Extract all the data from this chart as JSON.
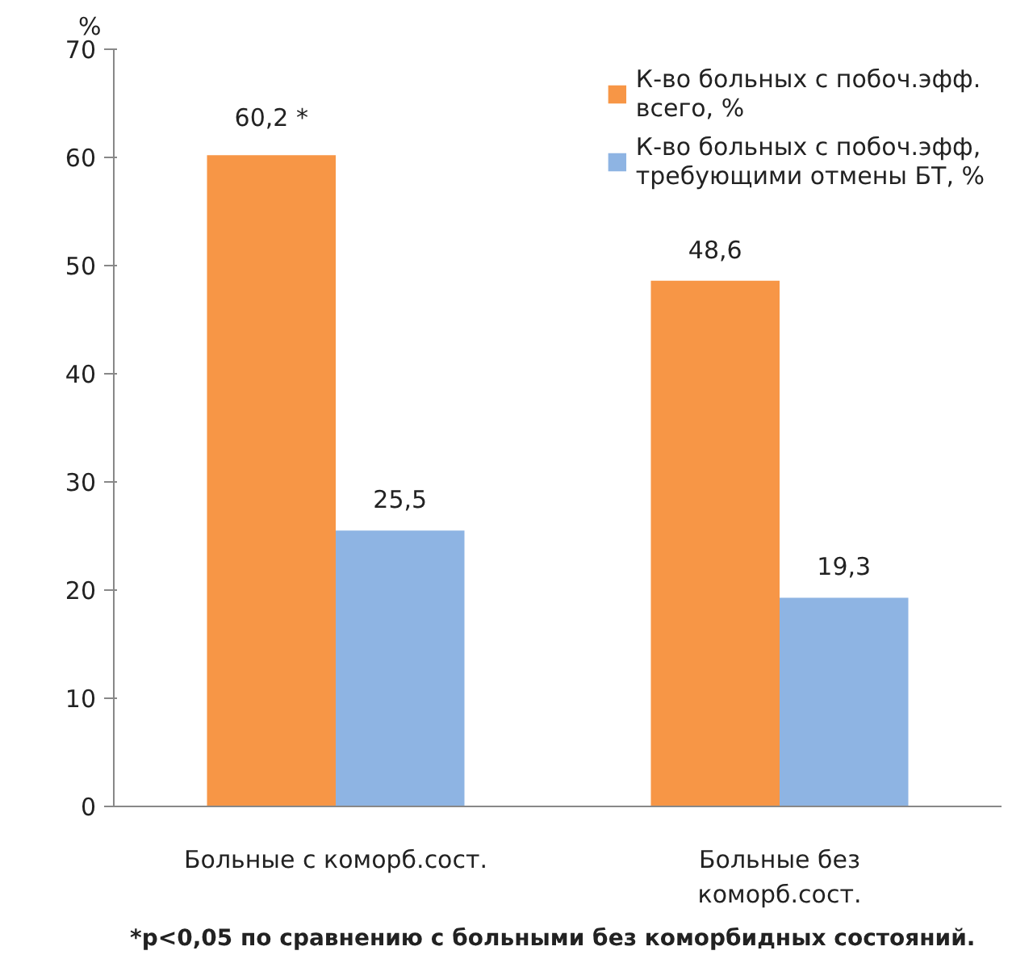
{
  "chart_data": {
    "type": "bar",
    "ylabel": "%",
    "categories": [
      "Больные с коморб.сост.",
      "Больные без\nкоморб.сост."
    ],
    "series": [
      {
        "name": "К-во больных с побоч.эфф.\nвсего, %",
        "color": "#f79646",
        "values": [
          60.2,
          48.6
        ],
        "value_labels": [
          "60,2 *",
          "48,6"
        ]
      },
      {
        "name": "К-во больных с побоч.эфф,\nтребующими отмены БТ, %",
        "color": "#8eb4e3",
        "values": [
          25.5,
          19.3
        ],
        "value_labels": [
          "25,5",
          "19,3"
        ]
      }
    ],
    "ylim": [
      0,
      70
    ],
    "yticks": [
      0,
      10,
      20,
      30,
      40,
      50,
      60,
      70
    ],
    "grid": false,
    "legend": "top right",
    "annotations": [
      "*p<0,05 по сравнению с больными без коморбидных состояний."
    ]
  }
}
